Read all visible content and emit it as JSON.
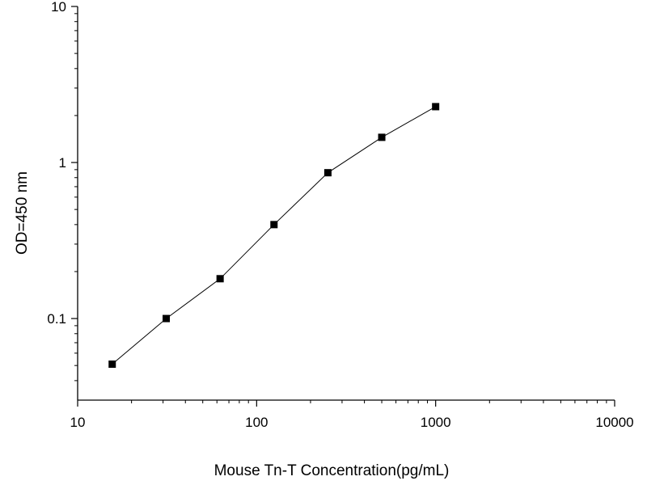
{
  "chart_data": {
    "type": "line",
    "x_scale": "log",
    "y_scale": "log",
    "xlabel": "Mouse Tn-T  Concentration(pg/mL)",
    "ylabel": "OD=450 nm",
    "xlim": [
      10,
      10000
    ],
    "ylim": [
      0.03,
      10
    ],
    "grid": false,
    "x_ticks": [
      {
        "value": 10,
        "label": "10"
      },
      {
        "value": 100,
        "label": "100"
      },
      {
        "value": 1000,
        "label": "1000"
      },
      {
        "value": 10000,
        "label": "10000"
      }
    ],
    "y_ticks": [
      {
        "value": 0.1,
        "label": "0.1"
      },
      {
        "value": 1,
        "label": "1"
      },
      {
        "value": 10,
        "label": "10"
      }
    ],
    "series": [
      {
        "marker": "square",
        "color": "#000000",
        "x": [
          15.6,
          31.25,
          62.5,
          125,
          250,
          500,
          1000
        ],
        "y": [
          0.051,
          0.1,
          0.18,
          0.4,
          0.86,
          1.45,
          2.28
        ]
      }
    ]
  }
}
